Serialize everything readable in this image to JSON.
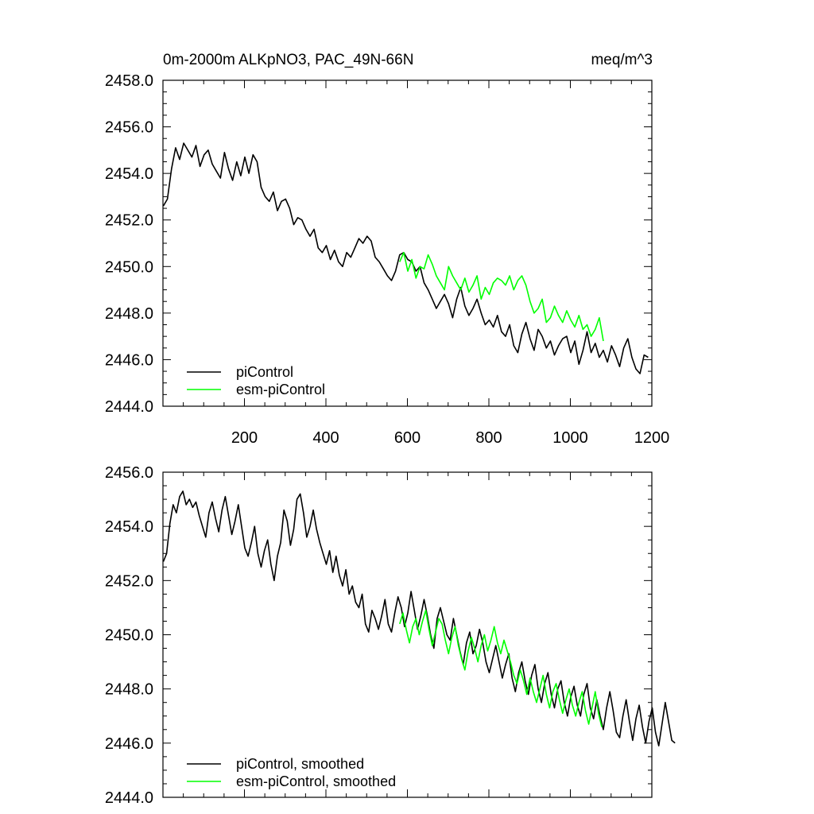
{
  "chart_data": [
    {
      "type": "line",
      "title_left": "0m-2000m ALKpNO3, PAC_49N-66N",
      "title_right": "meq/m^3",
      "xlim": [
        0,
        1200
      ],
      "ylim": [
        2444,
        2458
      ],
      "xticks": [
        200,
        400,
        600,
        800,
        1000,
        1200
      ],
      "xtick_labels": [
        "200",
        "400",
        "600",
        "800",
        "1000",
        "1200"
      ],
      "yticks": [
        2444,
        2446,
        2448,
        2450,
        2452,
        2454,
        2456,
        2458
      ],
      "ytick_labels": [
        "2444.0",
        "2446.0",
        "2448.0",
        "2450.0",
        "2452.0",
        "2454.0",
        "2456.0",
        "2458.0"
      ],
      "series": [
        {
          "name": "piControl",
          "color": "#000000",
          "x_start": 1,
          "x_step": 10,
          "values": [
            2452.6,
            2452.9,
            2454.2,
            2455.1,
            2454.6,
            2455.3,
            2455.0,
            2454.7,
            2455.2,
            2454.3,
            2454.8,
            2455.0,
            2454.4,
            2454.1,
            2453.8,
            2454.9,
            2454.2,
            2453.7,
            2454.5,
            2453.9,
            2454.7,
            2454.0,
            2454.8,
            2454.5,
            2453.4,
            2453.0,
            2452.8,
            2453.2,
            2452.4,
            2452.8,
            2452.9,
            2452.5,
            2451.8,
            2452.1,
            2452.0,
            2451.6,
            2451.3,
            2451.6,
            2450.8,
            2450.6,
            2450.9,
            2450.3,
            2450.7,
            2450.2,
            2450.0,
            2450.6,
            2450.4,
            2450.8,
            2451.2,
            2451.0,
            2451.3,
            2451.1,
            2450.4,
            2450.2,
            2449.9,
            2449.6,
            2449.4,
            2449.8,
            2450.5,
            2450.6,
            2450.3,
            2450.2,
            2449.8,
            2450.0,
            2449.3,
            2449.0,
            2448.6,
            2448.2,
            2448.5,
            2448.8,
            2448.4,
            2447.8,
            2448.6,
            2449.1,
            2448.3,
            2447.9,
            2448.2,
            2448.6,
            2448.0,
            2447.5,
            2447.7,
            2447.4,
            2447.9,
            2447.2,
            2447.0,
            2447.5,
            2446.6,
            2446.3,
            2447.1,
            2447.6,
            2446.9,
            2446.4,
            2447.3,
            2447.0,
            2446.5,
            2446.8,
            2446.2,
            2446.6,
            2446.9,
            2447.0,
            2446.3,
            2446.8,
            2445.8,
            2446.4,
            2447.2,
            2446.3,
            2446.7,
            2446.1,
            2446.4,
            2445.9,
            2446.6,
            2446.2,
            2445.7,
            2446.5,
            2446.9,
            2446.1,
            2445.6,
            2445.4,
            2446.2,
            2446.1
          ]
        },
        {
          "name": "esm-piControl",
          "color": "#00ff00",
          "x_start": 581,
          "x_step": 10,
          "values": [
            2450.2,
            2450.6,
            2449.8,
            2450.3,
            2449.5,
            2450.0,
            2449.9,
            2450.5,
            2450.1,
            2449.6,
            2449.3,
            2449.0,
            2450.0,
            2449.6,
            2449.3,
            2449.0,
            2449.5,
            2448.9,
            2449.2,
            2449.6,
            2448.6,
            2449.1,
            2448.8,
            2449.3,
            2449.5,
            2449.4,
            2449.2,
            2449.6,
            2449.0,
            2449.4,
            2449.6,
            2449.2,
            2448.5,
            2448.0,
            2448.2,
            2448.6,
            2447.6,
            2447.8,
            2448.3,
            2447.9,
            2447.6,
            2448.1,
            2447.7,
            2447.4,
            2447.9,
            2447.3,
            2447.5,
            2447.0,
            2447.3,
            2447.8,
            2446.8
          ]
        }
      ],
      "legend": {
        "position": "bottom-left",
        "entries": [
          "piControl",
          "esm-piControl"
        ]
      }
    },
    {
      "type": "line",
      "xlim": [
        0,
        1200
      ],
      "ylim": [
        2444,
        2456
      ],
      "xticks": [
        200,
        400,
        600,
        800,
        1000,
        1200
      ],
      "yticks": [
        2444,
        2446,
        2448,
        2450,
        2452,
        2454,
        2456
      ],
      "ytick_labels": [
        "2444.0",
        "2446.0",
        "2448.0",
        "2450.0",
        "2452.0",
        "2454.0",
        "2456.0"
      ],
      "series": [
        {
          "name": "piControl, smoothed",
          "color": "#000000",
          "x_start": 1,
          "x_step": 8,
          "values": [
            2452.7,
            2453.0,
            2454.1,
            2454.8,
            2454.5,
            2455.1,
            2455.3,
            2454.8,
            2455.0,
            2454.7,
            2454.9,
            2454.4,
            2454.0,
            2453.6,
            2454.5,
            2454.9,
            2454.3,
            2453.8,
            2454.6,
            2455.1,
            2454.4,
            2453.7,
            2454.2,
            2454.8,
            2454.0,
            2453.2,
            2452.9,
            2453.4,
            2454.0,
            2453.0,
            2452.5,
            2453.1,
            2453.5,
            2452.6,
            2452.0,
            2452.9,
            2453.4,
            2454.6,
            2454.2,
            2453.3,
            2453.9,
            2455.0,
            2455.2,
            2454.5,
            2453.6,
            2454.0,
            2454.6,
            2453.9,
            2453.4,
            2453.0,
            2452.6,
            2453.1,
            2452.3,
            2452.9,
            2452.2,
            2451.8,
            2452.4,
            2451.5,
            2451.8,
            2451.2,
            2451.0,
            2451.5,
            2450.4,
            2450.1,
            2450.9,
            2450.6,
            2450.2,
            2450.7,
            2451.3,
            2450.4,
            2450.1,
            2450.8,
            2451.4,
            2451.0,
            2450.3,
            2450.8,
            2451.6,
            2450.9,
            2450.2,
            2450.7,
            2451.3,
            2450.7,
            2450.0,
            2449.5,
            2450.6,
            2451.0,
            2450.5,
            2450.0,
            2449.8,
            2450.6,
            2450.0,
            2449.4,
            2448.9,
            2449.7,
            2450.1,
            2449.3,
            2449.6,
            2450.2,
            2449.7,
            2449.0,
            2448.6,
            2449.1,
            2449.6,
            2449.0,
            2448.4,
            2448.9,
            2449.3,
            2448.4,
            2447.9,
            2448.6,
            2449.0,
            2448.3,
            2447.8,
            2448.5,
            2448.9,
            2448.0,
            2447.5,
            2448.2,
            2448.6,
            2447.8,
            2447.3,
            2448.0,
            2448.3,
            2447.5,
            2447.0,
            2447.7,
            2448.1,
            2447.4,
            2447.0,
            2447.8,
            2448.2,
            2447.3,
            2446.9,
            2447.6,
            2447.0,
            2446.5,
            2447.3,
            2447.9,
            2447.2,
            2446.4,
            2446.2,
            2447.0,
            2447.6,
            2446.8,
            2446.1,
            2446.9,
            2447.4,
            2446.6,
            2446.0,
            2446.8,
            2447.3,
            2446.4,
            2445.9,
            2446.7,
            2447.5,
            2446.8,
            2446.1,
            2446.0
          ]
        },
        {
          "name": "esm-piControl, smoothed",
          "color": "#00ff00",
          "x_start": 581,
          "x_step": 8,
          "values": [
            2450.4,
            2450.8,
            2450.2,
            2449.7,
            2450.3,
            2450.6,
            2450.0,
            2450.5,
            2450.9,
            2450.2,
            2449.6,
            2450.1,
            2450.6,
            2450.4,
            2449.8,
            2449.3,
            2449.9,
            2450.3,
            2449.6,
            2449.1,
            2448.7,
            2449.4,
            2449.9,
            2449.5,
            2449.0,
            2449.6,
            2450.0,
            2449.4,
            2449.8,
            2450.3,
            2449.7,
            2449.3,
            2449.8,
            2449.4,
            2449.0,
            2448.5,
            2448.2,
            2448.7,
            2448.3,
            2447.8,
            2448.4,
            2447.9,
            2447.5,
            2448.0,
            2448.5,
            2447.8,
            2447.3,
            2447.9,
            2448.2,
            2447.6,
            2447.1,
            2447.6,
            2448.0,
            2447.4,
            2447.0,
            2447.5,
            2447.9,
            2447.2,
            2446.7,
            2447.3,
            2447.9,
            2447.1,
            2446.6
          ]
        }
      ],
      "legend": {
        "position": "bottom-left",
        "entries": [
          "piControl, smoothed",
          "esm-piControl, smoothed"
        ]
      }
    }
  ]
}
